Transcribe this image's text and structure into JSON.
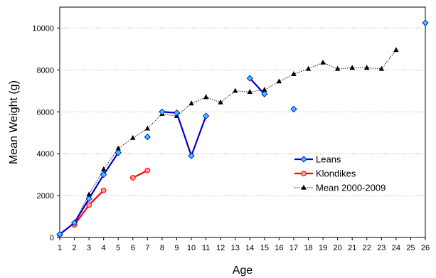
{
  "chart_data": {
    "type": "line",
    "title": "",
    "xlabel": "Age",
    "ylabel": "Mean Weight (g)",
    "xlim": [
      1,
      26
    ],
    "ylim": [
      0,
      11000
    ],
    "x_ticks": [
      1,
      2,
      3,
      4,
      5,
      6,
      7,
      8,
      9,
      10,
      11,
      12,
      13,
      14,
      15,
      16,
      17,
      18,
      19,
      20,
      21,
      22,
      23,
      24,
      25,
      26
    ],
    "y_ticks": [
      0,
      2000,
      4000,
      6000,
      8000,
      10000
    ],
    "y_tick_labels": [
      "0",
      "2000",
      "4000",
      "6000",
      "8000",
      "10000"
    ],
    "grid": "horizontal dotted",
    "legend_position": "lower-right",
    "series": [
      {
        "name": "Leans",
        "color": "#0000CC",
        "marker": "diamond",
        "marker_fill": "#33CCFF",
        "line_style": "solid",
        "segments": [
          [
            [
              1,
              150
            ],
            [
              2,
              700
            ],
            [
              3,
              1850
            ],
            [
              4,
              3000
            ],
            [
              5,
              4050
            ]
          ],
          [
            [
              7,
              4800
            ]
          ],
          [
            [
              8,
              6000
            ],
            [
              9,
              5950
            ],
            [
              10,
              3900
            ],
            [
              11,
              5800
            ]
          ],
          [
            [
              14,
              7600
            ],
            [
              15,
              6850
            ]
          ],
          [
            [
              17,
              6130
            ]
          ],
          [
            [
              26,
              10250
            ]
          ]
        ]
      },
      {
        "name": "Klondikes",
        "color": "#FF0000",
        "marker": "circle",
        "marker_fill": "#FF9999",
        "line_style": "solid",
        "segments": [
          [
            [
              2,
              600
            ],
            [
              3,
              1550
            ],
            [
              4,
              2250
            ]
          ],
          [
            [
              6,
              2850
            ],
            [
              7,
              3200
            ]
          ]
        ]
      },
      {
        "name": "Mean 2000-2009",
        "color": "#000000",
        "marker": "triangle",
        "marker_fill": "#000000",
        "line_style": "dotted",
        "segments": [
          [
            [
              1,
              150
            ],
            [
              2,
              700
            ],
            [
              3,
              2050
            ],
            [
              4,
              3250
            ],
            [
              5,
              4250
            ],
            [
              6,
              4750
            ],
            [
              7,
              5200
            ],
            [
              8,
              5900
            ],
            [
              9,
              5800
            ],
            [
              10,
              6400
            ],
            [
              11,
              6700
            ],
            [
              12,
              6450
            ],
            [
              13,
              7000
            ],
            [
              14,
              6950
            ],
            [
              15,
              7050
            ],
            [
              16,
              7450
            ],
            [
              17,
              7800
            ],
            [
              18,
              8050
            ],
            [
              19,
              8350
            ],
            [
              20,
              8050
            ],
            [
              21,
              8100
            ],
            [
              22,
              8100
            ],
            [
              23,
              8050
            ],
            [
              24,
              8950
            ]
          ]
        ]
      }
    ]
  }
}
